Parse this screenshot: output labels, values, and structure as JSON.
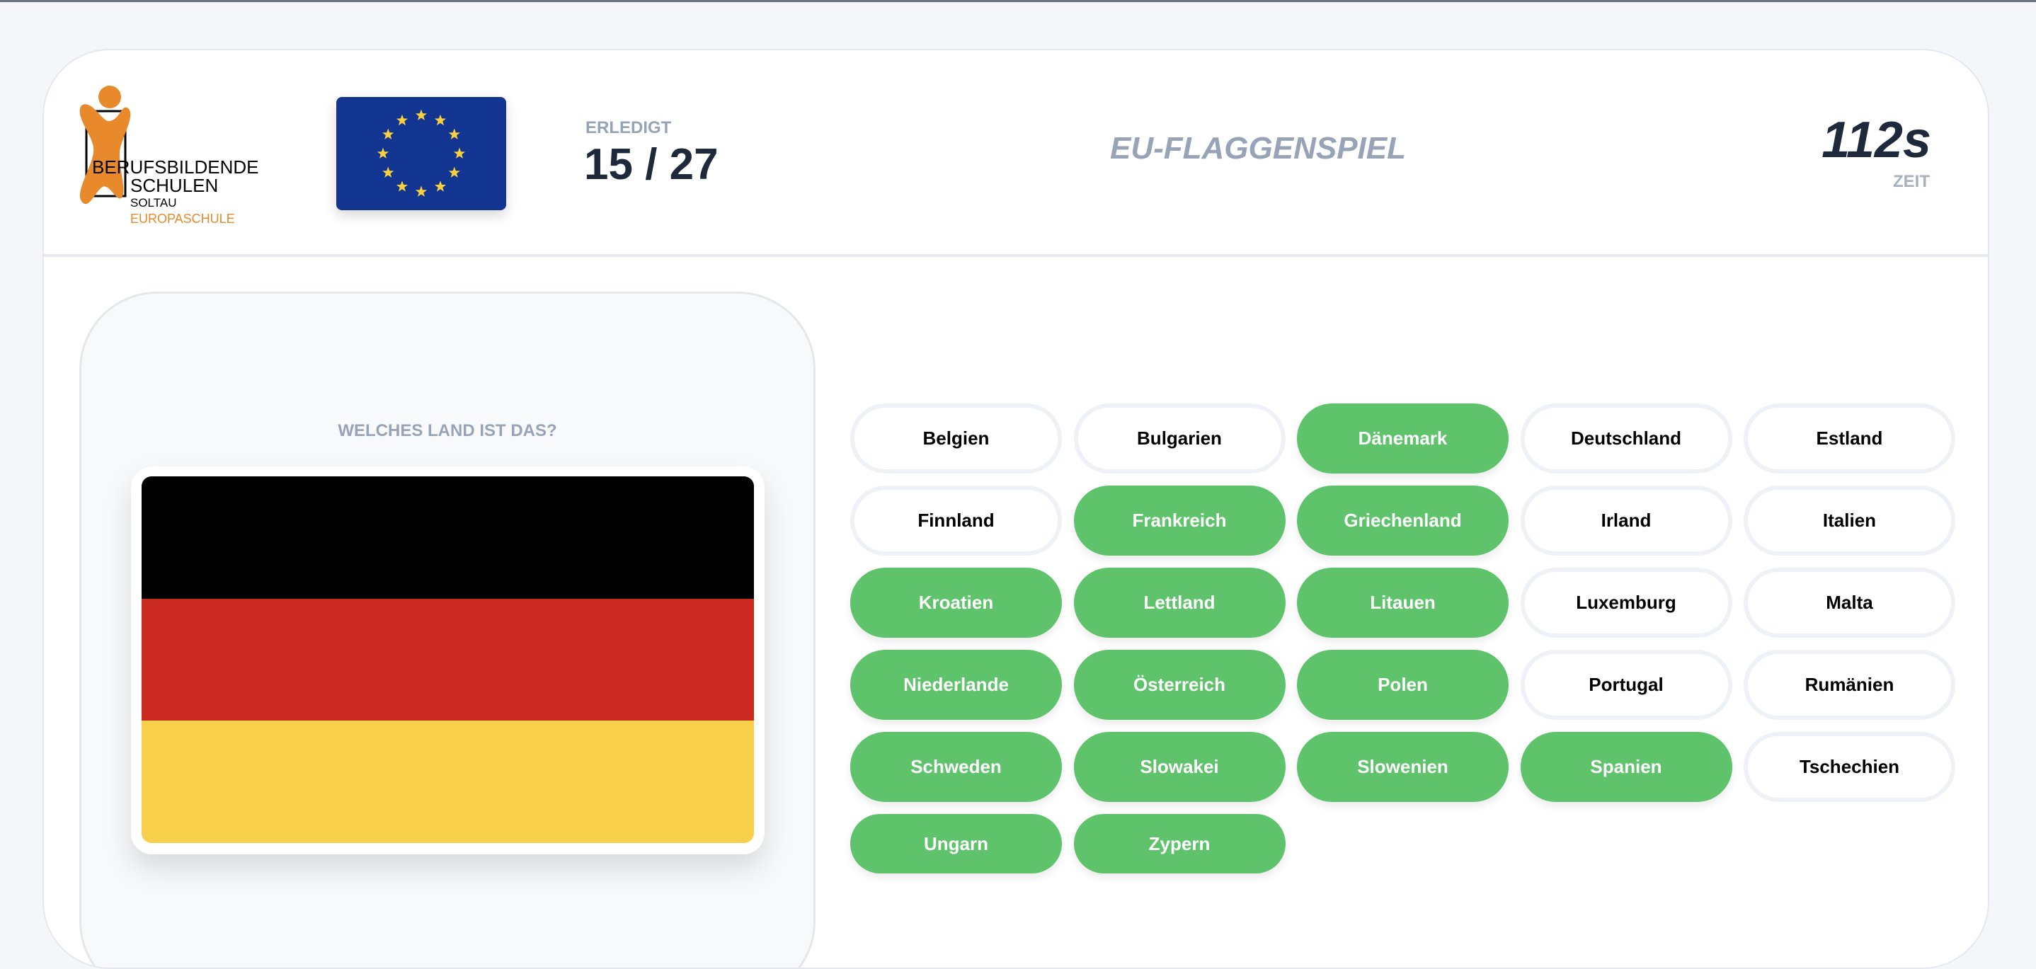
{
  "logo": {
    "line1": "BERUFSBILDENDE",
    "line2": "SCHULEN",
    "line3": "SOLTAU",
    "line4": "EUROPASCHULE"
  },
  "progress": {
    "label": "ERLEDIGT",
    "value": "15 / 27"
  },
  "title": "EU-FLAGGENSPIEL",
  "timer": {
    "value": "112s",
    "label": "ZEIT"
  },
  "question": "WELCHES LAND IST DAS?",
  "current_flag": {
    "country": "Deutschland",
    "colors": [
      "#000000",
      "#c9291e",
      "#f7cf4a"
    ]
  },
  "colors": {
    "done": "#5fc36c",
    "accent": "#e8892c",
    "eu_blue": "#133592",
    "eu_star": "#f8cf3e"
  },
  "countries": [
    {
      "label": "Belgien",
      "done": false
    },
    {
      "label": "Bulgarien",
      "done": false
    },
    {
      "label": "Dänemark",
      "done": true
    },
    {
      "label": "Deutschland",
      "done": false
    },
    {
      "label": "Estland",
      "done": false
    },
    {
      "label": "Finnland",
      "done": false
    },
    {
      "label": "Frankreich",
      "done": true
    },
    {
      "label": "Griechenland",
      "done": true
    },
    {
      "label": "Irland",
      "done": false
    },
    {
      "label": "Italien",
      "done": false
    },
    {
      "label": "Kroatien",
      "done": true
    },
    {
      "label": "Lettland",
      "done": true
    },
    {
      "label": "Litauen",
      "done": true
    },
    {
      "label": "Luxemburg",
      "done": false
    },
    {
      "label": "Malta",
      "done": false
    },
    {
      "label": "Niederlande",
      "done": true
    },
    {
      "label": "Österreich",
      "done": true
    },
    {
      "label": "Polen",
      "done": true
    },
    {
      "label": "Portugal",
      "done": false
    },
    {
      "label": "Rumänien",
      "done": false
    },
    {
      "label": "Schweden",
      "done": true
    },
    {
      "label": "Slowakei",
      "done": true
    },
    {
      "label": "Slowenien",
      "done": true
    },
    {
      "label": "Spanien",
      "done": true
    },
    {
      "label": "Tschechien",
      "done": false
    },
    {
      "label": "Ungarn",
      "done": true
    },
    {
      "label": "Zypern",
      "done": true
    }
  ]
}
